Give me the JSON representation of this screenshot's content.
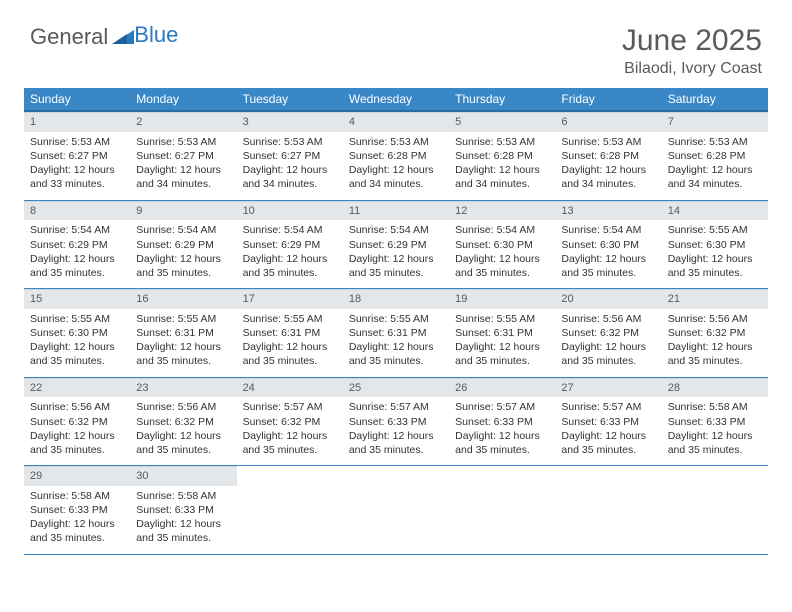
{
  "logo": {
    "text1": "General",
    "text2": "Blue"
  },
  "title": {
    "month": "June 2025",
    "location": "Bilaodi, Ivory Coast"
  },
  "colors": {
    "header_blue": "#3a87c8",
    "header_border": "#2a6ba2",
    "daynum_bg": "#e4e7ea",
    "text_gray": "#5a5a5a",
    "row_divider": "#3a87c8"
  },
  "weekdays": [
    "Sunday",
    "Monday",
    "Tuesday",
    "Wednesday",
    "Thursday",
    "Friday",
    "Saturday"
  ],
  "days": [
    {
      "n": 1,
      "sunrise": "5:53 AM",
      "sunset": "6:27 PM",
      "daylight": "12 hours and 33 minutes."
    },
    {
      "n": 2,
      "sunrise": "5:53 AM",
      "sunset": "6:27 PM",
      "daylight": "12 hours and 34 minutes."
    },
    {
      "n": 3,
      "sunrise": "5:53 AM",
      "sunset": "6:27 PM",
      "daylight": "12 hours and 34 minutes."
    },
    {
      "n": 4,
      "sunrise": "5:53 AM",
      "sunset": "6:28 PM",
      "daylight": "12 hours and 34 minutes."
    },
    {
      "n": 5,
      "sunrise": "5:53 AM",
      "sunset": "6:28 PM",
      "daylight": "12 hours and 34 minutes."
    },
    {
      "n": 6,
      "sunrise": "5:53 AM",
      "sunset": "6:28 PM",
      "daylight": "12 hours and 34 minutes."
    },
    {
      "n": 7,
      "sunrise": "5:53 AM",
      "sunset": "6:28 PM",
      "daylight": "12 hours and 34 minutes."
    },
    {
      "n": 8,
      "sunrise": "5:54 AM",
      "sunset": "6:29 PM",
      "daylight": "12 hours and 35 minutes."
    },
    {
      "n": 9,
      "sunrise": "5:54 AM",
      "sunset": "6:29 PM",
      "daylight": "12 hours and 35 minutes."
    },
    {
      "n": 10,
      "sunrise": "5:54 AM",
      "sunset": "6:29 PM",
      "daylight": "12 hours and 35 minutes."
    },
    {
      "n": 11,
      "sunrise": "5:54 AM",
      "sunset": "6:29 PM",
      "daylight": "12 hours and 35 minutes."
    },
    {
      "n": 12,
      "sunrise": "5:54 AM",
      "sunset": "6:30 PM",
      "daylight": "12 hours and 35 minutes."
    },
    {
      "n": 13,
      "sunrise": "5:54 AM",
      "sunset": "6:30 PM",
      "daylight": "12 hours and 35 minutes."
    },
    {
      "n": 14,
      "sunrise": "5:55 AM",
      "sunset": "6:30 PM",
      "daylight": "12 hours and 35 minutes."
    },
    {
      "n": 15,
      "sunrise": "5:55 AM",
      "sunset": "6:30 PM",
      "daylight": "12 hours and 35 minutes."
    },
    {
      "n": 16,
      "sunrise": "5:55 AM",
      "sunset": "6:31 PM",
      "daylight": "12 hours and 35 minutes."
    },
    {
      "n": 17,
      "sunrise": "5:55 AM",
      "sunset": "6:31 PM",
      "daylight": "12 hours and 35 minutes."
    },
    {
      "n": 18,
      "sunrise": "5:55 AM",
      "sunset": "6:31 PM",
      "daylight": "12 hours and 35 minutes."
    },
    {
      "n": 19,
      "sunrise": "5:55 AM",
      "sunset": "6:31 PM",
      "daylight": "12 hours and 35 minutes."
    },
    {
      "n": 20,
      "sunrise": "5:56 AM",
      "sunset": "6:32 PM",
      "daylight": "12 hours and 35 minutes."
    },
    {
      "n": 21,
      "sunrise": "5:56 AM",
      "sunset": "6:32 PM",
      "daylight": "12 hours and 35 minutes."
    },
    {
      "n": 22,
      "sunrise": "5:56 AM",
      "sunset": "6:32 PM",
      "daylight": "12 hours and 35 minutes."
    },
    {
      "n": 23,
      "sunrise": "5:56 AM",
      "sunset": "6:32 PM",
      "daylight": "12 hours and 35 minutes."
    },
    {
      "n": 24,
      "sunrise": "5:57 AM",
      "sunset": "6:32 PM",
      "daylight": "12 hours and 35 minutes."
    },
    {
      "n": 25,
      "sunrise": "5:57 AM",
      "sunset": "6:33 PM",
      "daylight": "12 hours and 35 minutes."
    },
    {
      "n": 26,
      "sunrise": "5:57 AM",
      "sunset": "6:33 PM",
      "daylight": "12 hours and 35 minutes."
    },
    {
      "n": 27,
      "sunrise": "5:57 AM",
      "sunset": "6:33 PM",
      "daylight": "12 hours and 35 minutes."
    },
    {
      "n": 28,
      "sunrise": "5:58 AM",
      "sunset": "6:33 PM",
      "daylight": "12 hours and 35 minutes."
    },
    {
      "n": 29,
      "sunrise": "5:58 AM",
      "sunset": "6:33 PM",
      "daylight": "12 hours and 35 minutes."
    },
    {
      "n": 30,
      "sunrise": "5:58 AM",
      "sunset": "6:33 PM",
      "daylight": "12 hours and 35 minutes."
    }
  ],
  "labels": {
    "sunrise": "Sunrise:",
    "sunset": "Sunset:",
    "daylight": "Daylight:"
  },
  "layout": {
    "cols": 7,
    "first_weekday_index": 0,
    "total_days": 30
  }
}
